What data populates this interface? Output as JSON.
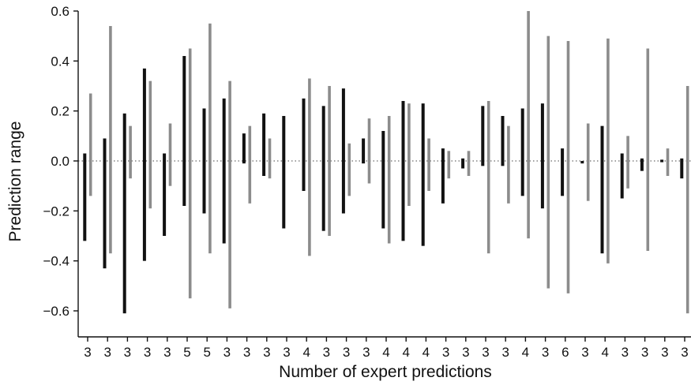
{
  "chart_data": {
    "type": "range-bar",
    "xlabel": "Number of expert predictions",
    "ylabel": "Prediction range",
    "ylim": [
      -0.7,
      0.6
    ],
    "yticks": [
      0.6,
      0.4,
      0.2,
      0.0,
      -0.2,
      -0.4,
      -0.6
    ],
    "ytick_labels": [
      "0.6",
      "0.4",
      "0.2",
      "0.0",
      "−0.2",
      "−0.4",
      "−0.6"
    ],
    "zero_line": "dotted",
    "grid": false,
    "colors": {
      "black": "#111111",
      "grey": "#8c8c8c"
    },
    "categories": [
      "3",
      "3",
      "3",
      "3",
      "3",
      "5",
      "5",
      "3",
      "3",
      "3",
      "3",
      "4",
      "3",
      "3",
      "3",
      "4",
      "4",
      "4",
      "3",
      "3",
      "3",
      "3",
      "4",
      "3",
      "6",
      "3",
      "4",
      "3",
      "3",
      "3",
      "3"
    ],
    "series": [
      {
        "color": "black",
        "ranges": [
          [
            -0.32,
            0.03
          ],
          [
            -0.43,
            0.09
          ],
          [
            -0.61,
            0.19
          ],
          [
            -0.4,
            0.37
          ],
          [
            -0.3,
            0.03
          ],
          [
            -0.18,
            0.42
          ],
          [
            -0.21,
            0.21
          ],
          [
            -0.33,
            0.25
          ],
          [
            -0.01,
            0.11
          ],
          [
            -0.06,
            0.19
          ],
          [
            -0.27,
            0.18
          ],
          [
            -0.12,
            0.25
          ],
          [
            -0.28,
            0.22
          ],
          [
            -0.21,
            0.29
          ],
          [
            -0.01,
            0.09
          ],
          [
            -0.27,
            0.12
          ],
          [
            -0.32,
            0.24
          ],
          [
            -0.34,
            0.23
          ],
          [
            -0.17,
            0.05
          ],
          [
            -0.03,
            0.01
          ],
          [
            -0.02,
            0.22
          ],
          [
            -0.02,
            0.18
          ],
          [
            -0.14,
            0.21
          ],
          [
            -0.19,
            0.23
          ],
          [
            -0.14,
            0.05
          ],
          [
            -0.01,
            0.0
          ],
          [
            -0.37,
            0.14
          ],
          [
            -0.15,
            0.03
          ],
          [
            -0.04,
            0.01
          ],
          [
            -0.005,
            0.005
          ],
          [
            -0.07,
            0.01
          ]
        ]
      },
      {
        "color": "grey",
        "ranges": [
          [
            -0.14,
            0.27
          ],
          [
            -0.37,
            0.54
          ],
          [
            -0.07,
            0.14
          ],
          [
            -0.19,
            0.32
          ],
          [
            -0.1,
            0.15
          ],
          [
            -0.55,
            0.45
          ],
          [
            -0.37,
            0.55
          ],
          [
            -0.59,
            0.32
          ],
          [
            -0.17,
            0.14
          ],
          [
            -0.07,
            0.09
          ],
          null,
          [
            -0.38,
            0.33
          ],
          [
            -0.3,
            0.3
          ],
          [
            -0.14,
            0.07
          ],
          [
            -0.09,
            0.17
          ],
          [
            -0.33,
            0.18
          ],
          [
            -0.18,
            0.23
          ],
          [
            -0.12,
            0.09
          ],
          [
            -0.07,
            0.04
          ],
          [
            -0.06,
            0.04
          ],
          [
            -0.37,
            0.24
          ],
          [
            -0.17,
            0.14
          ],
          [
            -0.31,
            0.6
          ],
          [
            -0.51,
            0.5
          ],
          [
            -0.53,
            0.48
          ],
          [
            -0.16,
            0.15
          ],
          [
            -0.41,
            0.49
          ],
          [
            -0.11,
            0.1
          ],
          [
            -0.36,
            0.45
          ],
          [
            -0.06,
            0.05
          ],
          [
            -0.61,
            0.3
          ]
        ]
      }
    ]
  }
}
